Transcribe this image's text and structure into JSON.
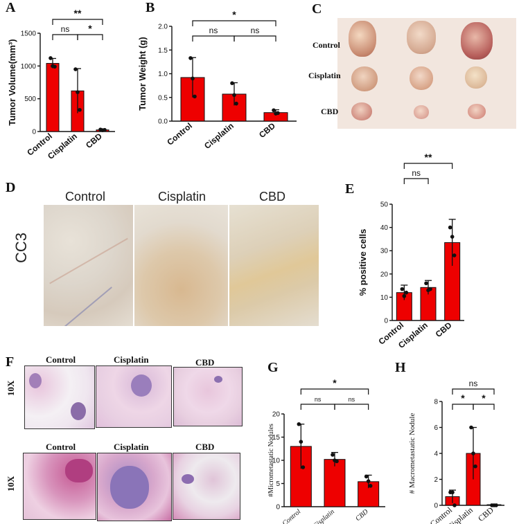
{
  "panels": {
    "A": "A",
    "B": "B",
    "C": "C",
    "D": "D",
    "E": "E",
    "F": "F",
    "G": "G",
    "H": "H"
  },
  "photo_C": {
    "row_labels": [
      "Control",
      "Cisplatin",
      "CBD"
    ]
  },
  "micro_D": {
    "col_labels": [
      "Control",
      "Cisplatin",
      "CBD"
    ],
    "row_label": "CC3"
  },
  "micro_F": {
    "top_labels": [
      "Control",
      "Cisplatin",
      "CBD"
    ],
    "bottom_labels": [
      "Control",
      "Cisplatin",
      "CBD"
    ],
    "mag_top": "10X",
    "mag_bottom": "10X"
  },
  "colors": {
    "bar": "#ee0000",
    "axis": "#111111"
  },
  "chart_data": [
    {
      "id": "A",
      "type": "bar",
      "categories": [
        "Control",
        "Cisplatin",
        "CBD"
      ],
      "values": [
        1040,
        620,
        25
      ],
      "errors": [
        75,
        340,
        10
      ],
      "points": [
        [
          1120,
          1000,
          990
        ],
        [
          950,
          600,
          330
        ],
        [
          30,
          20,
          25
        ]
      ],
      "ylabel": "Tumor Volume(mm³)",
      "ylim": [
        0,
        1500
      ],
      "yticks": [
        "0",
        "500",
        "1000",
        "1500"
      ],
      "significance": [
        {
          "from": 0,
          "to": 1,
          "label": "ns"
        },
        {
          "from": 1,
          "to": 2,
          "label": "*"
        },
        {
          "from": 0,
          "to": 2,
          "label": "**"
        }
      ]
    },
    {
      "id": "B",
      "type": "bar",
      "categories": [
        "Control",
        "Cisplatin",
        "CBD"
      ],
      "values": [
        0.92,
        0.57,
        0.18
      ],
      "errors": [
        0.42,
        0.24,
        0.06
      ],
      "points": [
        [
          1.33,
          0.9,
          0.52
        ],
        [
          0.8,
          0.55,
          0.37
        ],
        [
          0.23,
          0.16,
          0.17
        ]
      ],
      "ylabel": "Tumor Weight (g)",
      "ylim": [
        0,
        2.0
      ],
      "yticks": [
        "0.0",
        "0.5",
        "1.0",
        "1.5",
        "2.0"
      ],
      "significance": [
        {
          "from": 0,
          "to": 1,
          "label": "ns"
        },
        {
          "from": 1,
          "to": 2,
          "label": "ns"
        },
        {
          "from": 0,
          "to": 2,
          "label": "*"
        }
      ]
    },
    {
      "id": "E",
      "type": "bar",
      "categories": [
        "Control",
        "Cisplatin",
        "CBD"
      ],
      "values": [
        12,
        14.2,
        33.5
      ],
      "errors": [
        3.2,
        3,
        10
      ],
      "points": [
        [
          13.5,
          10.5,
          12
        ],
        [
          16,
          13,
          13.5
        ],
        [
          40,
          36,
          28
        ]
      ],
      "ylabel": "% positive cells",
      "ylim": [
        0,
        50
      ],
      "yticks": [
        "0",
        "10",
        "20",
        "30",
        "40",
        "50"
      ],
      "significance": [
        {
          "from": 0,
          "to": 1,
          "label": "ns"
        },
        {
          "from": 0,
          "to": 2,
          "label": "**"
        }
      ]
    },
    {
      "id": "G",
      "type": "bar",
      "categories": [
        "Control",
        "Cisplatin",
        "CBD"
      ],
      "values": [
        13,
        10.2,
        5.4
      ],
      "errors": [
        4.8,
        1.5,
        1.4
      ],
      "points": [
        [
          17.8,
          14,
          8.5
        ],
        [
          11.2,
          10,
          9.8
        ],
        [
          6.5,
          5.5,
          4.5
        ]
      ],
      "ylabel": "#Micrometastatic Nodules",
      "ylim": [
        0,
        20
      ],
      "yticks": [
        "0",
        "5",
        "10",
        "15",
        "20"
      ],
      "significance": [
        {
          "from": 0,
          "to": 1,
          "label": "ns"
        },
        {
          "from": 1,
          "to": 2,
          "label": "ns"
        },
        {
          "from": 0,
          "to": 2,
          "label": "*"
        }
      ]
    },
    {
      "id": "H",
      "type": "bar",
      "categories": [
        "Control",
        "Cisplatin",
        "CBD"
      ],
      "values": [
        0.67,
        4.0,
        0.05
      ],
      "errors": [
        0.5,
        2.0,
        0.05
      ],
      "points": [
        [
          1,
          1,
          0
        ],
        [
          6,
          4,
          3
        ],
        [
          0,
          0,
          0
        ]
      ],
      "ylabel": "# Macrometastatic Nodule",
      "ylim": [
        0,
        8
      ],
      "yticks": [
        "0",
        "2",
        "4",
        "6",
        "8"
      ],
      "significance": [
        {
          "from": 0,
          "to": 1,
          "label": "*"
        },
        {
          "from": 1,
          "to": 2,
          "label": "*"
        },
        {
          "from": 0,
          "to": 2,
          "label": "ns"
        }
      ]
    }
  ]
}
